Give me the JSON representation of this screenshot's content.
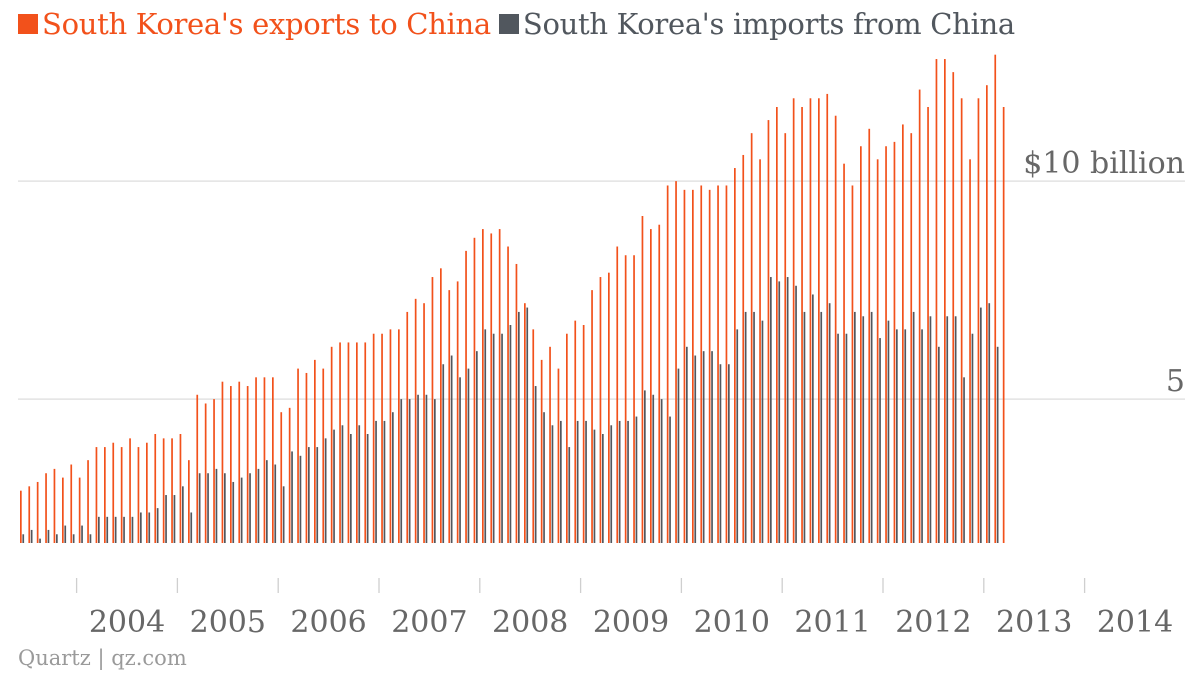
{
  "legend": {
    "exports_label": "South Korea's exports to China",
    "imports_label": "South Korea's imports from China"
  },
  "source": "Quartz | qz.com",
  "colors": {
    "exports": "#f2511b",
    "imports": "#51575e",
    "grid": "#e2e2e2",
    "axis_text": "#676767"
  },
  "chart_data": {
    "type": "bar",
    "title": "",
    "xlabel": "",
    "ylabel": "",
    "ylim": [
      1.7,
      12.6
    ],
    "y_ticks": [
      {
        "value": 5,
        "label": "5"
      },
      {
        "value": 10,
        "label": "$10 billion"
      }
    ],
    "x_ticks": [
      "2004",
      "2005",
      "2006",
      "2007",
      "2008",
      "2009",
      "2010",
      "2011",
      "2012",
      "2013",
      "2014"
    ],
    "x_range": [
      "2003-07",
      "2014-06"
    ],
    "grid": "horizontal",
    "start_month": "2003-06",
    "series": [
      {
        "name": "South Korea's exports to China",
        "values": [
          2.9,
          3.0,
          3.1,
          3.3,
          3.4,
          3.2,
          3.5,
          3.2,
          3.6,
          3.9,
          3.9,
          4.0,
          3.9,
          4.1,
          3.9,
          4.0,
          4.2,
          4.1,
          4.1,
          4.2,
          3.6,
          5.1,
          4.9,
          5.0,
          5.4,
          5.3,
          5.4,
          5.3,
          5.5,
          5.5,
          5.5,
          4.7,
          4.8,
          5.7,
          5.6,
          5.9,
          5.7,
          6.2,
          6.3,
          6.3,
          6.3,
          6.3,
          6.5,
          6.5,
          6.6,
          6.6,
          7.0,
          7.3,
          7.2,
          7.8,
          8.0,
          7.5,
          7.7,
          8.4,
          8.7,
          8.9,
          8.8,
          8.9,
          8.5,
          8.1,
          7.2,
          6.6,
          5.9,
          6.2,
          5.7,
          6.5,
          6.8,
          6.7,
          7.5,
          7.8,
          7.9,
          8.5,
          8.3,
          8.3,
          9.2,
          8.9,
          9.0,
          9.9,
          10.0,
          9.8,
          9.8,
          9.9,
          9.8,
          9.9,
          9.9,
          10.3,
          10.6,
          11.1,
          10.5,
          11.4,
          11.7,
          11.1,
          11.9,
          11.7,
          11.9,
          11.9,
          12.0,
          11.5,
          10.4,
          9.9,
          10.8,
          11.2,
          10.5,
          10.8,
          10.9,
          11.3,
          11.1,
          12.1,
          11.7,
          12.8,
          12.8,
          12.5,
          11.9,
          10.5,
          11.9,
          12.2,
          12.9,
          11.7
        ]
      },
      {
        "name": "South Korea's imports from China",
        "values": [
          1.9,
          2.0,
          1.8,
          2.0,
          1.9,
          2.1,
          1.9,
          2.1,
          1.9,
          2.3,
          2.3,
          2.3,
          2.3,
          2.3,
          2.4,
          2.4,
          2.5,
          2.8,
          2.8,
          3.0,
          2.4,
          3.3,
          3.3,
          3.4,
          3.3,
          3.1,
          3.2,
          3.3,
          3.4,
          3.6,
          3.5,
          3.0,
          3.8,
          3.7,
          3.9,
          3.9,
          4.1,
          4.3,
          4.4,
          4.2,
          4.4,
          4.2,
          4.5,
          4.5,
          4.7,
          5.0,
          5.0,
          5.1,
          5.1,
          5.0,
          5.8,
          6.0,
          5.5,
          5.7,
          6.1,
          6.6,
          6.5,
          6.5,
          6.7,
          7.0,
          7.1,
          5.3,
          4.7,
          4.4,
          4.5,
          3.9,
          4.5,
          4.5,
          4.3,
          4.2,
          4.4,
          4.5,
          4.5,
          4.6,
          5.2,
          5.1,
          5.0,
          4.6,
          5.7,
          6.2,
          6.0,
          6.1,
          6.1,
          5.8,
          5.8,
          6.6,
          7.0,
          7.0,
          6.8,
          7.8,
          7.7,
          7.8,
          7.6,
          7.0,
          7.4,
          7.0,
          7.2,
          6.5,
          6.5,
          7.0,
          6.9,
          7.0,
          6.4,
          6.8,
          6.6,
          6.6,
          7.0,
          6.6,
          6.9,
          6.2,
          6.9,
          6.9,
          5.5,
          6.5,
          7.1,
          7.2,
          6.2
        ]
      }
    ]
  }
}
